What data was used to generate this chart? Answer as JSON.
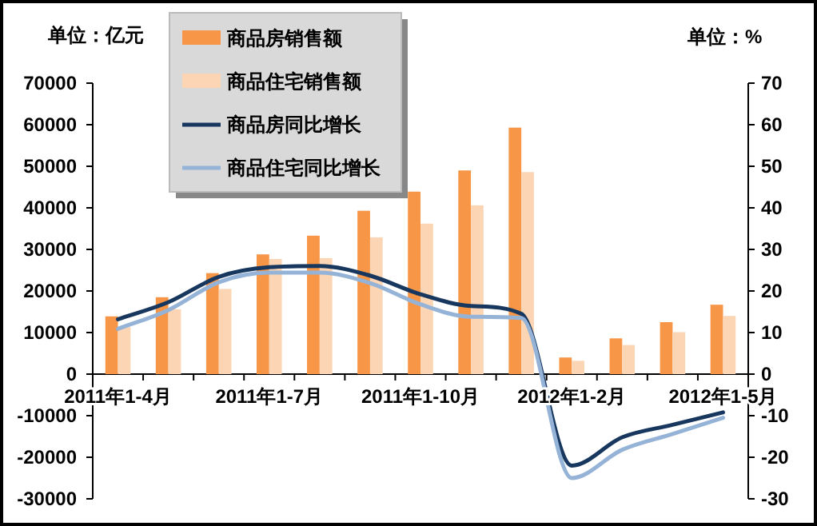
{
  "chart_data": {
    "type": "bar",
    "ylabel": "单位：亿元",
    "y2label": "单位：%",
    "categories": [
      "2011年1-4月",
      null,
      null,
      "2011年1-7月",
      null,
      null,
      "2011年1-10月",
      null,
      null,
      "2012年1-2月",
      null,
      null,
      "2012年1-5月"
    ],
    "series": [
      {
        "name": "商品房销售额",
        "color": "#f79646",
        "values": [
          13900,
          18500,
          24300,
          28800,
          33300,
          39300,
          43900,
          49000,
          59300,
          4000,
          8600,
          12500,
          16700
        ]
      },
      {
        "name": "商品住宅销售额",
        "color": "#fcd5b4",
        "values": [
          11300,
          15600,
          20500,
          27700,
          27900,
          32900,
          36200,
          40600,
          48600,
          3200,
          7000,
          10100,
          14000
        ]
      },
      {
        "name": "商品房同比增长",
        "type": "line",
        "axis": "y2",
        "color": "#17375e",
        "values": [
          13.2,
          17.3,
          23.4,
          25.7,
          26,
          23.7,
          19.2,
          16.4,
          14.5,
          -22,
          -15.2,
          -12.2,
          -9.2
        ]
      },
      {
        "name": "商品住宅同比增长",
        "type": "line",
        "axis": "y2",
        "color": "#95b3d7",
        "values": [
          10.9,
          15.4,
          22.1,
          24.4,
          24.4,
          21.9,
          16.8,
          13.8,
          13.5,
          -25,
          -18.2,
          -14.4,
          -10.5
        ]
      }
    ],
    "ylim": [
      -30000,
      70000
    ],
    "yticks": [
      -30000,
      -20000,
      -10000,
      0,
      10000,
      20000,
      30000,
      40000,
      50000,
      60000,
      70000
    ],
    "y2lim": [
      -30,
      70
    ],
    "y2ticks": [
      -30,
      -20,
      -10,
      0,
      10,
      20,
      30,
      40,
      50,
      60,
      70
    ],
    "legend": "top left"
  }
}
